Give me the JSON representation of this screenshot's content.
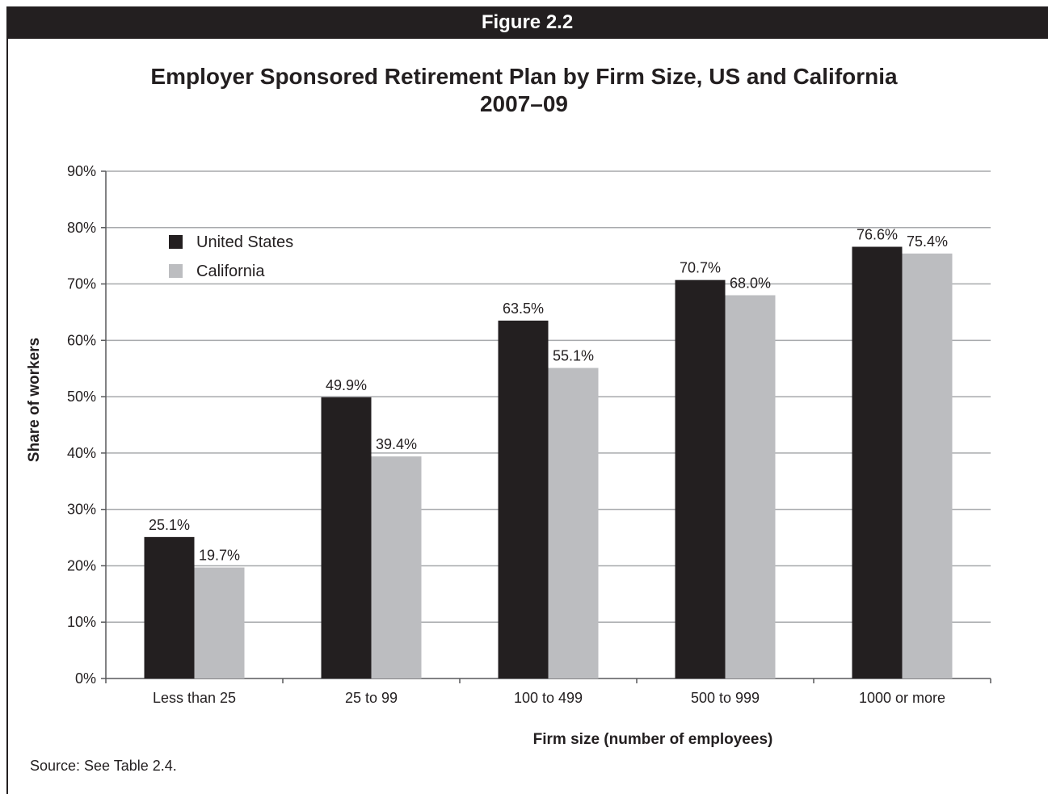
{
  "figure_label": "Figure 2.2",
  "title_line1": "Employer Sponsored Retirement Plan by Firm Size, US and California",
  "title_line2": "2007–09",
  "source": "Source: See Table 2.4.",
  "colors": {
    "united_states": "#231f20",
    "california": "#bcbdc0",
    "grid": "#a7a9ac",
    "axis": "#58595b"
  },
  "chart_data": {
    "type": "bar",
    "categories": [
      "Less than 25",
      "25 to 99",
      "100 to 499",
      "500 to 999",
      "1000 or more"
    ],
    "series": [
      {
        "name": "United States",
        "values": [
          25.1,
          49.9,
          63.5,
          70.7,
          76.6
        ],
        "labels": [
          "25.1%",
          "49.9%",
          "63.5%",
          "70.7%",
          "76.6%"
        ]
      },
      {
        "name": "California",
        "values": [
          19.7,
          39.4,
          55.1,
          68.0,
          75.4
        ],
        "labels": [
          "19.7%",
          "39.4%",
          "55.1%",
          "68.0%",
          "75.4%"
        ]
      }
    ],
    "xlabel": "Firm size (number of employees)",
    "ylabel": "Share of workers",
    "ylim": [
      0,
      90
    ],
    "yticks": [
      "0%",
      "10%",
      "20%",
      "30%",
      "40%",
      "50%",
      "60%",
      "70%",
      "80%",
      "90%"
    ],
    "grid": true,
    "legend_position": "top-left"
  }
}
